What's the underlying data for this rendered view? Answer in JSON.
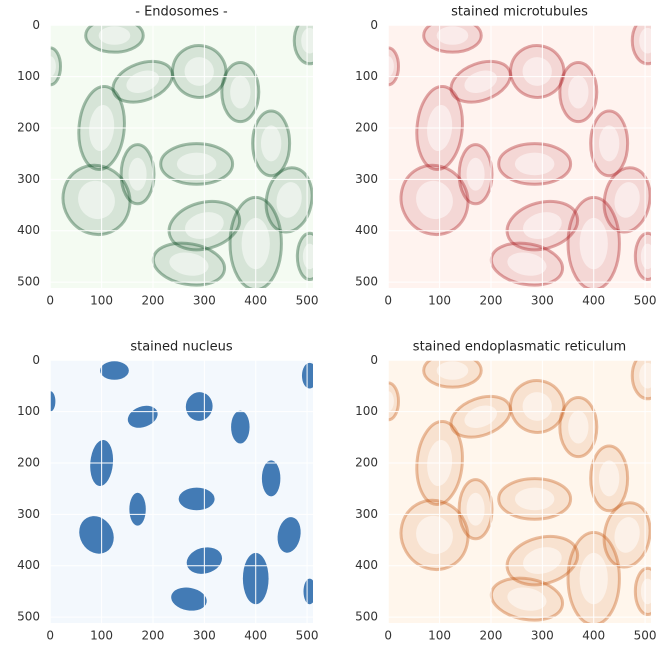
{
  "chart_data": [
    {
      "type": "image",
      "title": "- Endosomes -",
      "color": "#00441b",
      "xlim": [
        -0.5,
        511.5
      ],
      "ylim": [
        511.5,
        -0.5
      ],
      "xticks": [
        0,
        100,
        200,
        300,
        400,
        500
      ],
      "yticks": [
        0,
        100,
        200,
        300,
        400,
        500
      ],
      "grid": true
    },
    {
      "type": "image",
      "title": "stained microtubules",
      "color": "#a50f15",
      "xlim": [
        -0.5,
        511.5
      ],
      "ylim": [
        511.5,
        -0.5
      ],
      "xticks": [
        0,
        100,
        200,
        300,
        400,
        500
      ],
      "yticks": [
        0,
        100,
        200,
        300,
        400,
        500
      ],
      "grid": true
    },
    {
      "type": "image",
      "title": "stained nucleus",
      "color": "#08519c",
      "xlim": [
        -0.5,
        511.5
      ],
      "ylim": [
        511.5,
        -0.5
      ],
      "xticks": [
        0,
        100,
        200,
        300,
        400,
        500
      ],
      "yticks": [
        0,
        100,
        200,
        300,
        400,
        500
      ],
      "grid": true
    },
    {
      "type": "image",
      "title": "stained endoplasmatic reticulum",
      "color": "#c4500a",
      "xlim": [
        -0.5,
        511.5
      ],
      "ylim": [
        511.5,
        -0.5
      ],
      "xticks": [
        0,
        100,
        200,
        300,
        400,
        500
      ],
      "yticks": [
        0,
        100,
        200,
        300,
        400,
        500
      ],
      "grid": true
    }
  ]
}
